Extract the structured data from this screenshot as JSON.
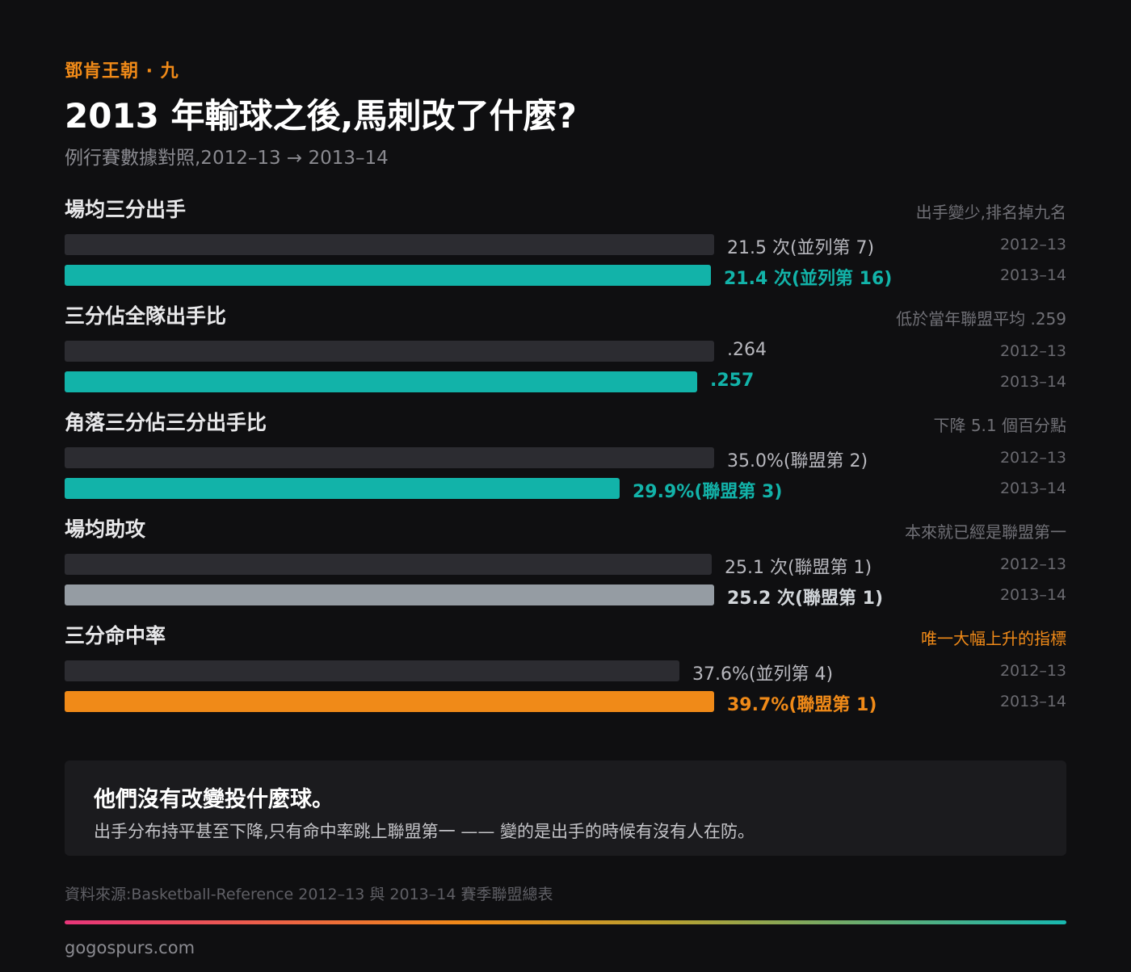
{
  "header": {
    "series_label": "鄧肯王朝 · 九",
    "title": "2013 年輸球之後,馬刺改了什麼?",
    "subtitle": "例行賽數據對照,2012–13 → 2013–14"
  },
  "colors": {
    "accent_teal": "#12b3a9",
    "accent_orange": "#f08a18",
    "neutral_gray": "#959ca3",
    "prev_bar": "#2c2c31"
  },
  "chart_data": {
    "type": "bar",
    "orientation": "horizontal",
    "seasons": [
      "2012–13",
      "2013–14"
    ],
    "metrics": [
      {
        "name": "場均三分出手",
        "note": "出手變少,排名掉九名",
        "highlight_note": false,
        "current_color": "#12b3a9",
        "values": [
          21.5,
          21.4
        ],
        "labels": [
          "21.5 次(並列第 7)",
          "21.4 次(並列第 16)"
        ]
      },
      {
        "name": "三分佔全隊出手比",
        "note": "低於當年聯盟平均 .259",
        "highlight_note": false,
        "current_color": "#12b3a9",
        "values": [
          0.264,
          0.257
        ],
        "labels": [
          ".264",
          ".257"
        ]
      },
      {
        "name": "角落三分佔三分出手比",
        "note": "下降 5.1 個百分點",
        "highlight_note": false,
        "current_color": "#12b3a9",
        "values": [
          35.0,
          29.9
        ],
        "labels": [
          "35.0%(聯盟第 2)",
          "29.9%(聯盟第 3)"
        ]
      },
      {
        "name": "場均助攻",
        "note": "本來就已經是聯盟第一",
        "highlight_note": false,
        "current_color": "#959ca3",
        "values": [
          25.1,
          25.2
        ],
        "labels": [
          "25.1 次(聯盟第 1)",
          "25.2 次(聯盟第 1)"
        ]
      },
      {
        "name": "三分命中率",
        "note": "唯一大幅上升的指標",
        "highlight_note": true,
        "current_color": "#f08a18",
        "values": [
          37.6,
          39.7
        ],
        "labels": [
          "37.6%(並列第 4)",
          "39.7%(聯盟第 1)"
        ]
      }
    ]
  },
  "callout": {
    "title": "他們沒有改變投什麼球。",
    "body": "出手分布持平甚至下降,只有命中率跳上聯盟第一 —— 變的是出手的時候有沒有人在防。"
  },
  "footer": {
    "source": "資料來源:Basketball-Reference 2012–13 與 2013–14 賽季聯盟總表",
    "site": "gogospurs.com"
  }
}
